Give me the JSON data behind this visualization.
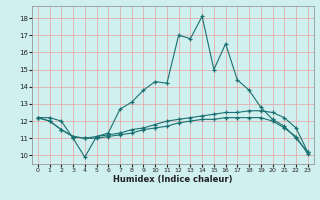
{
  "xlabel": "Humidex (Indice chaleur)",
  "background_color": "#cff0ef",
  "grid_color": "#e8a0a0",
  "line_color": "#1a7070",
  "xlim": [
    -0.5,
    23.5
  ],
  "ylim": [
    9.5,
    18.7
  ],
  "xticks": [
    0,
    1,
    2,
    3,
    4,
    5,
    6,
    7,
    8,
    9,
    10,
    11,
    12,
    13,
    14,
    15,
    16,
    17,
    18,
    19,
    20,
    21,
    22,
    23
  ],
  "yticks": [
    10,
    11,
    12,
    13,
    14,
    15,
    16,
    17,
    18
  ],
  "line1_x": [
    0,
    1,
    2,
    3,
    4,
    5,
    6,
    7,
    8,
    9,
    10,
    11,
    12,
    13,
    14,
    15,
    16,
    17,
    18,
    19,
    20,
    21,
    22,
    23
  ],
  "line1_y": [
    12.2,
    12.2,
    12.0,
    11.0,
    9.9,
    11.1,
    11.3,
    12.7,
    13.1,
    13.8,
    14.3,
    14.2,
    17.0,
    16.8,
    18.1,
    15.0,
    16.5,
    14.4,
    13.8,
    12.8,
    12.1,
    11.7,
    11.0,
    10.2
  ],
  "line2_x": [
    0,
    1,
    2,
    3,
    4,
    5,
    6,
    7,
    8,
    9,
    10,
    11,
    12,
    13,
    14,
    15,
    16,
    17,
    18,
    19,
    20,
    21,
    22,
    23
  ],
  "line2_y": [
    12.2,
    12.0,
    11.5,
    11.1,
    11.0,
    11.1,
    11.2,
    11.3,
    11.5,
    11.6,
    11.8,
    12.0,
    12.1,
    12.2,
    12.3,
    12.4,
    12.5,
    12.5,
    12.6,
    12.6,
    12.5,
    12.2,
    11.6,
    10.2
  ],
  "line3_x": [
    0,
    1,
    2,
    3,
    4,
    5,
    6,
    7,
    8,
    9,
    10,
    11,
    12,
    13,
    14,
    15,
    16,
    17,
    18,
    19,
    20,
    21,
    22,
    23
  ],
  "line3_y": [
    12.2,
    12.0,
    11.5,
    11.1,
    11.0,
    11.0,
    11.1,
    11.2,
    11.3,
    11.5,
    11.6,
    11.7,
    11.9,
    12.0,
    12.1,
    12.1,
    12.2,
    12.2,
    12.2,
    12.2,
    12.0,
    11.6,
    11.1,
    10.1
  ]
}
